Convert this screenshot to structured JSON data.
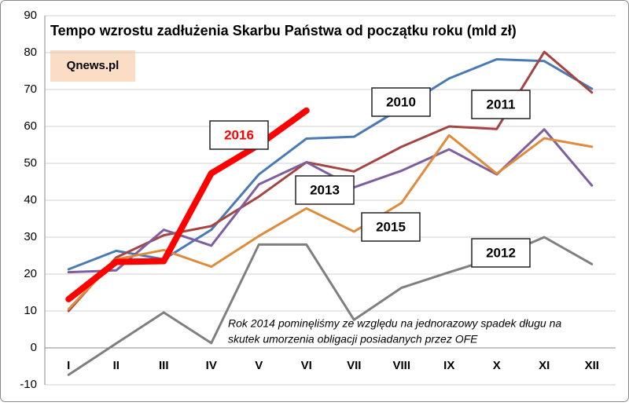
{
  "chart_data": {
    "type": "line",
    "title": "Tempo wzrostu zadłużenia Skarbu Państwa od początku roku (mld zł)",
    "source": "Qnews.pl",
    "annotation": [
      "Rok 2014 pominęliśmy ze względu na jednorazowy spadek długu na",
      "skutek umorzenia obligacji posiadanych przez OFE"
    ],
    "categories": [
      "I",
      "II",
      "III",
      "IV",
      "V",
      "VI",
      "VII",
      "VIII",
      "IX",
      "X",
      "XI",
      "XII"
    ],
    "series": [
      {
        "name": "2010",
        "color": "#4a7ab5",
        "values": [
          21.3,
          26.3,
          24,
          32,
          47,
          56.7,
          57.2,
          65,
          73,
          78.2,
          77.7,
          70.2
        ]
      },
      {
        "name": "2011",
        "color": "#a54542",
        "values": [
          10,
          24.5,
          30.5,
          33,
          41,
          50.3,
          47.8,
          54.5,
          60,
          59.3,
          80.2,
          69.2
        ]
      },
      {
        "name": "2012",
        "color": "#7f7f7f",
        "values": [
          -7.3,
          1.2,
          9.6,
          1.3,
          28,
          28,
          7.6,
          16.3,
          20.5,
          24.5,
          30,
          22.7
        ]
      },
      {
        "name": "2013",
        "color": "#7d5fa0",
        "values": [
          20.5,
          21,
          32,
          27.7,
          44.3,
          50.3,
          43.5,
          48,
          53.8,
          47,
          59.2,
          44
        ]
      },
      {
        "name": "2015",
        "color": "#e08a3c",
        "values": [
          10.5,
          24,
          26.5,
          22,
          30.3,
          37.8,
          31.5,
          39.3,
          57.6,
          47.2,
          56.8,
          54.5
        ]
      },
      {
        "name": "2016",
        "color": "#ff0000",
        "values": [
          13.2,
          23.3,
          23.5,
          47.3,
          55,
          64.3,
          null,
          null,
          null,
          null,
          null,
          null
        ]
      }
    ],
    "ylim": [
      -10,
      90
    ],
    "yticks": [
      -10,
      0,
      10,
      20,
      30,
      40,
      50,
      60,
      70,
      80,
      90
    ],
    "grid": true
  }
}
